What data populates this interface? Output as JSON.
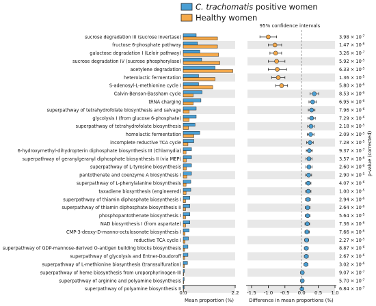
{
  "chart_data": {
    "type": "bar",
    "legend": {
      "placement": "top-left",
      "entries": [
        {
          "italic": "C. trachomatis",
          "rest": " positive women",
          "color": "#4a9fd4"
        },
        {
          "italic": "",
          "rest": "Healthy women",
          "color": "#f5a94a"
        }
      ]
    },
    "ci_title": "95% confidence intervals",
    "left_axis": {
      "xlabel": "Mean proportion (%)",
      "xlim": [
        0,
        2.2
      ],
      "ticks": [
        "0.0",
        "2.2"
      ]
    },
    "right_axis": {
      "xlabel": "Difference in mean proportions (%)",
      "xlim": [
        -1.5,
        1.0
      ],
      "ticks": [
        "-1.5",
        "-1.0",
        "-0.5",
        "0.0",
        "0.5",
        "1.0"
      ],
      "tick_values": [
        -1.5,
        -1.0,
        -0.5,
        0.0,
        0.5,
        1.0
      ]
    },
    "pvalue_label": "p-value (corrected)",
    "rows": [
      {
        "pathway": "sucrose degradation III (sucrose invertase)",
        "ct": 0.55,
        "healthy": 1.45,
        "diff": -1.0,
        "ci": [
          -1.25,
          -0.75
        ],
        "p_m": "3.98",
        "p_e": "-7"
      },
      {
        "pathway": "fructose 6-phosphate pathway",
        "ct": 0.6,
        "healthy": 1.45,
        "diff": -0.8,
        "ci": [
          -1.0,
          -0.6
        ],
        "p_m": "1.47",
        "p_e": "-6"
      },
      {
        "pathway": "galactose degradation I (Leloir pathway)",
        "ct": 0.7,
        "healthy": 1.5,
        "diff": -0.78,
        "ci": [
          -0.95,
          -0.6
        ],
        "p_m": "3.26",
        "p_e": "-7"
      },
      {
        "pathway": "sucrose degradation IV (sucrose phosphorylase)",
        "ct": 0.78,
        "healthy": 1.55,
        "diff": -0.75,
        "ci": [
          -1.0,
          -0.5
        ],
        "p_m": "5.92",
        "p_e": "-5"
      },
      {
        "pathway": "acetylene degradation",
        "ct": 1.35,
        "healthy": 2.1,
        "diff": -0.73,
        "ci": [
          -1.0,
          -0.45
        ],
        "p_m": "6.33",
        "p_e": "-5"
      },
      {
        "pathway": "heterolactic fermentation",
        "ct": 0.65,
        "healthy": 1.35,
        "diff": -0.7,
        "ci": [
          -0.9,
          -0.5
        ],
        "p_m": "1.36",
        "p_e": "-5"
      },
      {
        "pathway": "S-adenosyl-L-methionine cycle I",
        "ct": 0.65,
        "healthy": 1.25,
        "diff": -0.6,
        "ci": [
          -0.78,
          -0.42
        ],
        "p_m": "5.80",
        "p_e": "-6"
      },
      {
        "pathway": "Calvin-Benson-Bassham cycle",
        "ct": 0.8,
        "healthy": 0.42,
        "diff": 0.38,
        "ci": [
          0.25,
          0.51
        ],
        "p_m": "8.53",
        "p_e": "-6"
      },
      {
        "pathway": "tRNA charging",
        "ct": 0.75,
        "healthy": 0.42,
        "diff": 0.33,
        "ci": [
          0.22,
          0.44
        ],
        "p_m": "6.95",
        "p_e": "-6"
      },
      {
        "pathway": "superpathway of tetrahydrofolate biosynthesis and salvage",
        "ct": 0.55,
        "healthy": 0.25,
        "diff": 0.3,
        "ci": [
          0.2,
          0.4
        ],
        "p_m": "7.96",
        "p_e": "-6"
      },
      {
        "pathway": "glycolysis I (from glucose 6-phosphate)",
        "ct": 0.55,
        "healthy": 0.25,
        "diff": 0.3,
        "ci": [
          0.19,
          0.41
        ],
        "p_m": "7.29",
        "p_e": "-6"
      },
      {
        "pathway": "superpathway of tetrahydrofolate biosynthesis",
        "ct": 0.5,
        "healthy": 0.22,
        "diff": 0.28,
        "ci": [
          0.18,
          0.38
        ],
        "p_m": "2.18",
        "p_e": "-5"
      },
      {
        "pathway": "homolactic fermentation",
        "ct": 0.7,
        "healthy": 0.45,
        "diff": 0.27,
        "ci": [
          0.17,
          0.37
        ],
        "p_m": "2.09",
        "p_e": "-5"
      },
      {
        "pathway": "incomplete reductive TCA cycle",
        "ct": 0.45,
        "healthy": 0.2,
        "diff": 0.25,
        "ci": [
          0.15,
          0.35
        ],
        "p_m": "7.28",
        "p_e": "-5"
      },
      {
        "pathway": "6-hydroxymethyl-dihydropterin diphosphate biosynthesis III (Chlamydia)",
        "ct": 0.35,
        "healthy": 0.12,
        "diff": 0.23,
        "ci": [
          0.14,
          0.32
        ],
        "p_m": "9.37",
        "p_e": "-7"
      },
      {
        "pathway": "superpathway of geranylgeranyl diphosphate biosynthesis II (via MEP)",
        "ct": 0.35,
        "healthy": 0.13,
        "diff": 0.22,
        "ci": [
          0.13,
          0.31
        ],
        "p_m": "3.57",
        "p_e": "-6"
      },
      {
        "pathway": "superpathway of L-tyrosine biosynthesis",
        "ct": 0.35,
        "healthy": 0.13,
        "diff": 0.22,
        "ci": [
          0.13,
          0.31
        ],
        "p_m": "2.60",
        "p_e": "-6"
      },
      {
        "pathway": "pantothenate and coenzyme A biosynthesis I",
        "ct": 0.35,
        "healthy": 0.15,
        "diff": 0.21,
        "ci": [
          0.12,
          0.3
        ],
        "p_m": "2.90",
        "p_e": "-5"
      },
      {
        "pathway": "superpathway of L-phenylalanine biosynthesis",
        "ct": 0.32,
        "healthy": 0.12,
        "diff": 0.2,
        "ci": [
          0.12,
          0.28
        ],
        "p_m": "4.07",
        "p_e": "-6"
      },
      {
        "pathway": "taxadiene biosynthesis (engineered)",
        "ct": 0.32,
        "healthy": 0.12,
        "diff": 0.2,
        "ci": [
          0.12,
          0.28
        ],
        "p_m": "1.00",
        "p_e": "-5"
      },
      {
        "pathway": "superpathway of thiamin diphosphate biosynthesis I",
        "ct": 0.28,
        "healthy": 0.1,
        "diff": 0.19,
        "ci": [
          0.12,
          0.26
        ],
        "p_m": "2.94",
        "p_e": "-6"
      },
      {
        "pathway": "superpathway of thiamin diphosphate biosynthesis II",
        "ct": 0.28,
        "healthy": 0.1,
        "diff": 0.18,
        "ci": [
          0.11,
          0.25
        ],
        "p_m": "2.64",
        "p_e": "-6"
      },
      {
        "pathway": "phosphopantothenate biosynthesis I",
        "ct": 0.28,
        "healthy": 0.1,
        "diff": 0.18,
        "ci": [
          0.11,
          0.25
        ],
        "p_m": "5.64",
        "p_e": "-5"
      },
      {
        "pathway": "NAD biosynthesis I (from aspartate)",
        "ct": 0.28,
        "healthy": 0.1,
        "diff": 0.17,
        "ci": [
          0.1,
          0.24
        ],
        "p_m": "7.36",
        "p_e": "-6"
      },
      {
        "pathway": "CMP-3-deoxy-D-manno-octulosonate biosynthesis I",
        "ct": 0.25,
        "healthy": 0.08,
        "diff": 0.16,
        "ci": [
          0.1,
          0.23
        ],
        "p_m": "7.66",
        "p_e": "-6"
      },
      {
        "pathway": "reductive TCA cycle I",
        "ct": 0.22,
        "healthy": 0.08,
        "diff": 0.15,
        "ci": [
          0.09,
          0.21
        ],
        "p_m": "2.27",
        "p_e": "-5"
      },
      {
        "pathway": "superpathway of GDP-mannose-derived O-antigen building blocks biosynthesis",
        "ct": 0.2,
        "healthy": 0.06,
        "diff": 0.14,
        "ci": [
          0.08,
          0.2
        ],
        "p_m": "8.87",
        "p_e": "-6"
      },
      {
        "pathway": "superpathway of glycolysis and Entner-Doudoroff",
        "ct": 0.2,
        "healthy": 0.06,
        "diff": 0.14,
        "ci": [
          0.08,
          0.2
        ],
        "p_m": "2.67",
        "p_e": "-6"
      },
      {
        "pathway": "superpathway of L-methionine biosynthesis (transsulfuration)",
        "ct": 0.18,
        "healthy": 0.05,
        "diff": 0.13,
        "ci": [
          0.07,
          0.19
        ],
        "p_m": "3.02",
        "p_e": "-6"
      },
      {
        "pathway": "superpathway of heme biosynthesis from uroporphyrinogen-III",
        "ct": 0.05,
        "healthy": 0.01,
        "diff": 0.02,
        "ci": [
          0.0,
          0.04
        ],
        "p_m": "9.07",
        "p_e": "-7"
      },
      {
        "pathway": "superpathway of arginine and polyamine biosynthesis",
        "ct": 0.04,
        "healthy": 0.01,
        "diff": 0.02,
        "ci": [
          0.0,
          0.04
        ],
        "p_m": "5.70",
        "p_e": "-7"
      },
      {
        "pathway": "superpathway of polyamine biosynthesis II",
        "ct": 0.04,
        "healthy": 0.01,
        "diff": 0.01,
        "ci": [
          -0.01,
          0.03
        ],
        "p_m": "6.84",
        "p_e": "-7"
      }
    ]
  }
}
